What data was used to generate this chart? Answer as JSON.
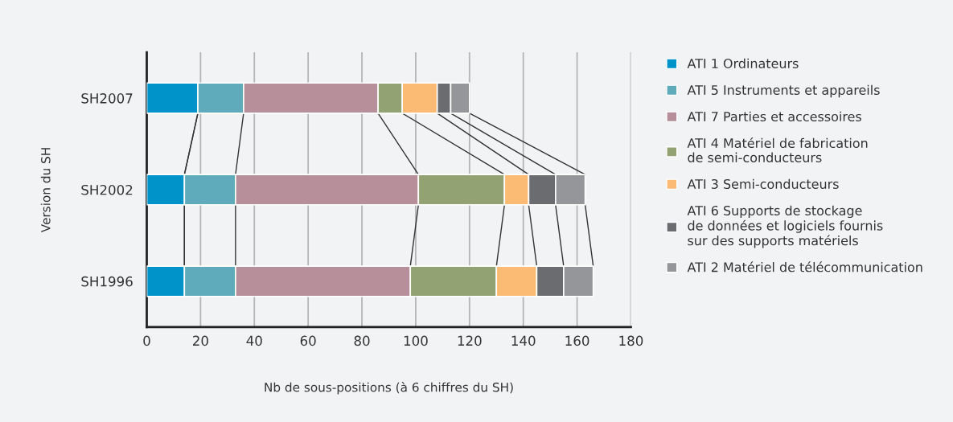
{
  "chart_data": {
    "type": "bar",
    "orientation": "horizontal",
    "stacked": true,
    "categories": [
      "SH2007",
      "SH2002",
      "SH1996"
    ],
    "series": [
      {
        "name": "ATI 1 Ordinateurs",
        "color": "#0093c9",
        "values": [
          19,
          14,
          14
        ]
      },
      {
        "name": "ATI 5 Instruments et appareils",
        "color": "#5fabbb",
        "values": [
          17,
          19,
          19
        ]
      },
      {
        "name": "ATI 7 Parties et accessoires",
        "color": "#b78f9b",
        "values": [
          50,
          68,
          65
        ]
      },
      {
        "name": "ATI 4 Matériel de fabrication\nde semi-conducteurs",
        "color": "#93a273",
        "values": [
          9,
          32,
          32
        ]
      },
      {
        "name": "ATI 3 Semi-conducteurs",
        "color": "#fcbb74",
        "values": [
          13,
          9,
          15
        ]
      },
      {
        "name": "ATI 6 Supports de stockage\nde données et logiciels fournis\nsur des supports matériels",
        "color": "#6b6c70",
        "values": [
          5,
          10,
          10
        ]
      },
      {
        "name": "ATI 2 Matériel de télécommunication",
        "color": "#959699",
        "values": [
          7,
          11,
          11
        ]
      }
    ],
    "xlim": [
      0,
      180
    ],
    "xticks": [
      0,
      20,
      40,
      60,
      80,
      100,
      120,
      140,
      160,
      180
    ],
    "xlabel": "Nb de sous-positions (à 6 chiffres du SH)",
    "ylabel": "Version du SH",
    "grid": "x",
    "legend": "right"
  }
}
